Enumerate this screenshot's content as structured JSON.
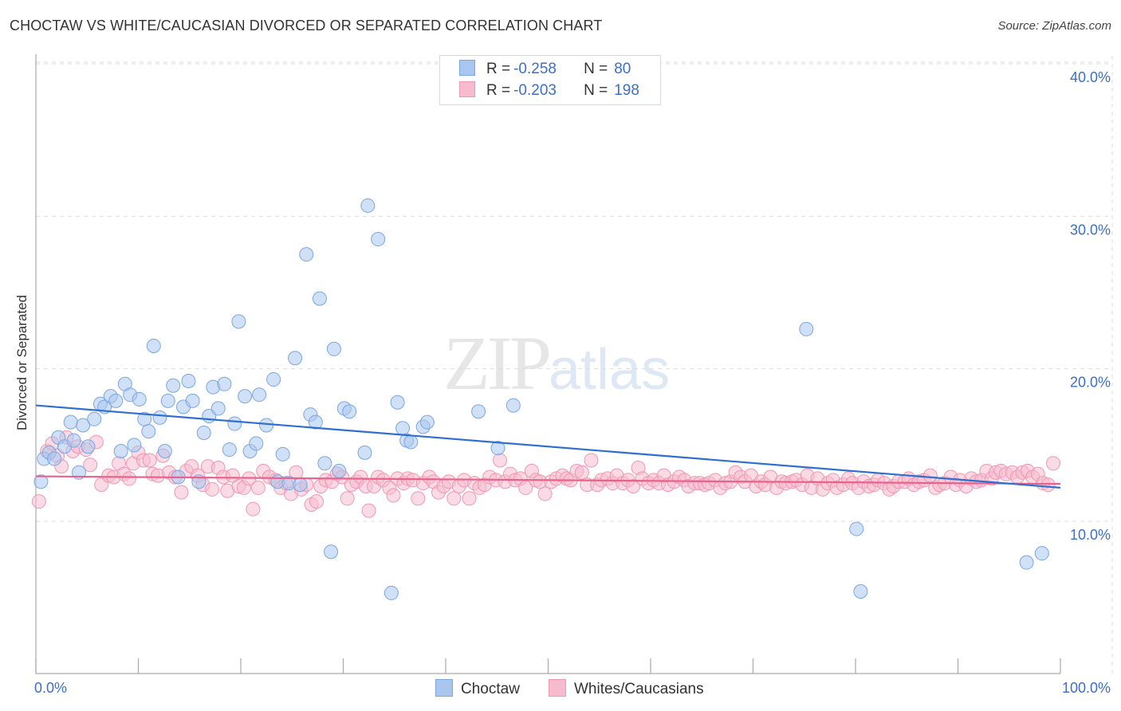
{
  "header": {
    "title": "CHOCTAW VS WHITE/CAUCASIAN DIVORCED OR SEPARATED CORRELATION CHART",
    "source": "Source: ZipAtlas.com"
  },
  "watermark": {
    "zip": "ZIP",
    "atlas": "atlas"
  },
  "legend_top": {
    "rows": [
      {
        "r_label": "R =",
        "r_value": "-0.258",
        "n_label": "N =",
        "n_value": "80"
      },
      {
        "r_label": "R =",
        "r_value": "-0.203",
        "n_label": "N =",
        "n_value": "198"
      }
    ]
  },
  "legend_bottom": {
    "items": [
      {
        "label": "Choctaw"
      },
      {
        "label": "Whites/Caucasians"
      }
    ]
  },
  "colors": {
    "choctaw_fill": "#a9c6ee",
    "choctaw_stroke": "#7aa7e0",
    "choctaw_line": "#2f6fd0",
    "white_fill": "#f6bccd",
    "white_stroke": "#ee98b2",
    "white_line": "#e8628d",
    "grid": "#dddddd",
    "tick_text": "#3d6fc6"
  },
  "chart_data": {
    "type": "scatter",
    "title": "CHOCTAW VS WHITE/CAUCASIAN DIVORCED OR SEPARATED CORRELATION CHART",
    "xlabel": "",
    "ylabel": "Divorced or Separated",
    "xlim": [
      0,
      100
    ],
    "ylim": [
      0,
      41
    ],
    "x_tick_labels": [
      "0.0%",
      "100.0%"
    ],
    "y_ticks": [
      10,
      20,
      30,
      40
    ],
    "y_tick_labels": [
      "10.0%",
      "20.0%",
      "30.0%",
      "40.0%"
    ],
    "grid": true,
    "legend_position": "top-center",
    "series": [
      {
        "name": "Choctaw",
        "r": -0.258,
        "n": 80,
        "trend": {
          "x": [
            0,
            100
          ],
          "y": [
            17.6,
            12.2
          ]
        },
        "points": [
          [
            0.5,
            12.6
          ],
          [
            0.8,
            14.1
          ],
          [
            1.3,
            14.5
          ],
          [
            1.8,
            14.1
          ],
          [
            2.2,
            15.5
          ],
          [
            2.8,
            14.9
          ],
          [
            3.4,
            16.5
          ],
          [
            3.7,
            15.3
          ],
          [
            4.2,
            13.2
          ],
          [
            4.6,
            16.3
          ],
          [
            5.1,
            14.9
          ],
          [
            5.7,
            16.7
          ],
          [
            6.3,
            17.7
          ],
          [
            6.7,
            17.5
          ],
          [
            7.3,
            18.2
          ],
          [
            7.8,
            17.9
          ],
          [
            8.3,
            14.6
          ],
          [
            8.7,
            19.0
          ],
          [
            9.2,
            18.3
          ],
          [
            9.6,
            15.0
          ],
          [
            10.1,
            18.0
          ],
          [
            10.6,
            16.7
          ],
          [
            11.0,
            15.9
          ],
          [
            11.5,
            21.5
          ],
          [
            12.1,
            16.8
          ],
          [
            12.6,
            14.6
          ],
          [
            12.9,
            17.9
          ],
          [
            13.4,
            18.9
          ],
          [
            13.9,
            12.9
          ],
          [
            14.4,
            17.5
          ],
          [
            14.9,
            19.2
          ],
          [
            15.3,
            17.9
          ],
          [
            15.9,
            12.6
          ],
          [
            16.4,
            15.8
          ],
          [
            16.9,
            16.9
          ],
          [
            17.3,
            18.8
          ],
          [
            17.8,
            17.4
          ],
          [
            18.4,
            19.0
          ],
          [
            18.9,
            14.7
          ],
          [
            19.4,
            16.4
          ],
          [
            19.8,
            23.1
          ],
          [
            20.4,
            18.2
          ],
          [
            20.9,
            14.6
          ],
          [
            21.5,
            15.1
          ],
          [
            21.8,
            18.3
          ],
          [
            22.5,
            16.3
          ],
          [
            23.2,
            19.3
          ],
          [
            23.6,
            12.6
          ],
          [
            24.1,
            14.4
          ],
          [
            24.7,
            12.5
          ],
          [
            25.3,
            20.7
          ],
          [
            25.8,
            12.4
          ],
          [
            26.4,
            27.5
          ],
          [
            26.8,
            17.0
          ],
          [
            27.3,
            16.5
          ],
          [
            27.7,
            24.6
          ],
          [
            28.2,
            13.8
          ],
          [
            28.8,
            8.0
          ],
          [
            29.1,
            21.3
          ],
          [
            29.6,
            13.3
          ],
          [
            30.1,
            17.4
          ],
          [
            30.6,
            17.2
          ],
          [
            32.1,
            14.5
          ],
          [
            32.4,
            30.7
          ],
          [
            33.4,
            28.5
          ],
          [
            34.7,
            5.3
          ],
          [
            35.3,
            17.8
          ],
          [
            35.8,
            16.1
          ],
          [
            36.2,
            15.3
          ],
          [
            36.6,
            15.2
          ],
          [
            37.8,
            16.2
          ],
          [
            38.2,
            16.5
          ],
          [
            43.2,
            17.2
          ],
          [
            45.1,
            14.8
          ],
          [
            46.6,
            17.6
          ],
          [
            75.2,
            22.6
          ],
          [
            80.1,
            9.5
          ],
          [
            80.5,
            5.4
          ],
          [
            96.7,
            7.3
          ],
          [
            98.2,
            7.9
          ]
        ]
      },
      {
        "name": "Whites/Caucasians",
        "r": -0.203,
        "n": 198,
        "trend": {
          "x": [
            0,
            100
          ],
          "y": [
            12.95,
            12.45
          ]
        },
        "points": [
          [
            0.3,
            11.3
          ],
          [
            1.1,
            14.6
          ],
          [
            1.6,
            15.1
          ],
          [
            2.1,
            14.3
          ],
          [
            2.5,
            13.6
          ],
          [
            3.0,
            15.5
          ],
          [
            3.6,
            14.6
          ],
          [
            4.1,
            14.9
          ],
          [
            4.9,
            14.7
          ],
          [
            5.3,
            13.7
          ],
          [
            5.9,
            15.2
          ],
          [
            6.4,
            12.4
          ],
          [
            7.1,
            13.0
          ],
          [
            7.6,
            12.9
          ],
          [
            8.1,
            13.8
          ],
          [
            8.6,
            13.1
          ],
          [
            9.1,
            12.8
          ],
          [
            9.5,
            13.8
          ],
          [
            10.0,
            14.5
          ],
          [
            10.5,
            14.0
          ],
          [
            11.1,
            14.0
          ],
          [
            11.4,
            13.1
          ],
          [
            11.9,
            13.0
          ],
          [
            12.4,
            14.3
          ],
          [
            13.0,
            13.2
          ],
          [
            13.6,
            12.9
          ],
          [
            14.2,
            11.9
          ],
          [
            14.7,
            13.3
          ],
          [
            15.2,
            13.6
          ],
          [
            15.8,
            13.0
          ],
          [
            16.3,
            12.4
          ],
          [
            16.8,
            13.6
          ],
          [
            17.2,
            12.1
          ],
          [
            17.8,
            13.5
          ],
          [
            18.3,
            12.9
          ],
          [
            18.7,
            12.0
          ],
          [
            19.2,
            13.0
          ],
          [
            19.8,
            12.3
          ],
          [
            20.3,
            12.2
          ],
          [
            20.8,
            12.8
          ],
          [
            21.2,
            10.8
          ],
          [
            21.7,
            12.2
          ],
          [
            22.2,
            13.3
          ],
          [
            22.8,
            12.9
          ],
          [
            23.4,
            12.7
          ],
          [
            23.9,
            12.2
          ],
          [
            24.4,
            12.5
          ],
          [
            24.9,
            11.8
          ],
          [
            25.4,
            13.2
          ],
          [
            25.9,
            12.1
          ],
          [
            26.4,
            12.4
          ],
          [
            26.9,
            11.1
          ],
          [
            27.4,
            11.3
          ],
          [
            27.8,
            12.3
          ],
          [
            28.3,
            12.7
          ],
          [
            28.9,
            12.6
          ],
          [
            29.4,
            13.1
          ],
          [
            29.9,
            12.9
          ],
          [
            30.4,
            11.5
          ],
          [
            30.8,
            12.4
          ],
          [
            31.3,
            12.6
          ],
          [
            31.7,
            12.9
          ],
          [
            32.2,
            12.3
          ],
          [
            32.5,
            10.7
          ],
          [
            33.0,
            12.3
          ],
          [
            33.4,
            12.9
          ],
          [
            33.9,
            12.7
          ],
          [
            34.5,
            12.2
          ],
          [
            34.9,
            11.7
          ],
          [
            35.3,
            12.8
          ],
          [
            35.9,
            12.5
          ],
          [
            36.3,
            12.8
          ],
          [
            36.8,
            12.7
          ],
          [
            37.3,
            11.5
          ],
          [
            37.8,
            12.5
          ],
          [
            38.4,
            12.9
          ],
          [
            38.8,
            12.6
          ],
          [
            39.3,
            11.9
          ],
          [
            39.8,
            12.3
          ],
          [
            40.3,
            12.6
          ],
          [
            40.8,
            11.5
          ],
          [
            41.3,
            12.3
          ],
          [
            41.8,
            12.7
          ],
          [
            42.3,
            11.5
          ],
          [
            42.8,
            12.5
          ],
          [
            43.3,
            12.2
          ],
          [
            43.8,
            12.4
          ],
          [
            44.3,
            12.9
          ],
          [
            44.9,
            12.7
          ],
          [
            45.3,
            14.0
          ],
          [
            45.8,
            12.6
          ],
          [
            46.3,
            13.1
          ],
          [
            46.8,
            12.7
          ],
          [
            47.3,
            12.8
          ],
          [
            47.8,
            12.2
          ],
          [
            48.4,
            13.3
          ],
          [
            48.8,
            12.7
          ],
          [
            49.2,
            12.6
          ],
          [
            49.7,
            11.8
          ],
          [
            50.3,
            12.6
          ],
          [
            50.8,
            12.8
          ],
          [
            51.4,
            13.0
          ],
          [
            51.8,
            12.8
          ],
          [
            52.2,
            12.7
          ],
          [
            52.8,
            13.3
          ],
          [
            53.3,
            13.2
          ],
          [
            53.8,
            12.4
          ],
          [
            54.2,
            14.0
          ],
          [
            54.8,
            12.4
          ],
          [
            55.2,
            12.7
          ],
          [
            55.8,
            12.8
          ],
          [
            56.3,
            12.5
          ],
          [
            56.7,
            13.0
          ],
          [
            57.3,
            12.5
          ],
          [
            57.8,
            12.7
          ],
          [
            58.3,
            12.3
          ],
          [
            58.8,
            13.5
          ],
          [
            59.2,
            12.8
          ],
          [
            59.8,
            12.5
          ],
          [
            60.3,
            12.7
          ],
          [
            60.8,
            12.5
          ],
          [
            61.3,
            13.0
          ],
          [
            61.7,
            12.4
          ],
          [
            62.3,
            12.6
          ],
          [
            62.8,
            12.9
          ],
          [
            63.3,
            12.7
          ],
          [
            63.7,
            12.3
          ],
          [
            64.3,
            12.5
          ],
          [
            64.8,
            12.5
          ],
          [
            65.3,
            12.4
          ],
          [
            65.7,
            12.5
          ],
          [
            66.3,
            12.7
          ],
          [
            66.8,
            12.2
          ],
          [
            67.3,
            12.5
          ],
          [
            67.8,
            12.6
          ],
          [
            68.3,
            13.2
          ],
          [
            68.8,
            12.9
          ],
          [
            69.2,
            12.6
          ],
          [
            69.8,
            13.0
          ],
          [
            70.3,
            12.3
          ],
          [
            70.8,
            12.6
          ],
          [
            71.2,
            12.4
          ],
          [
            71.7,
            12.9
          ],
          [
            72.3,
            12.2
          ],
          [
            72.8,
            12.6
          ],
          [
            73.2,
            12.5
          ],
          [
            73.8,
            12.6
          ],
          [
            74.2,
            12.7
          ],
          [
            74.8,
            12.4
          ],
          [
            75.3,
            13.0
          ],
          [
            75.7,
            12.2
          ],
          [
            76.3,
            12.8
          ],
          [
            76.8,
            12.1
          ],
          [
            77.3,
            12.5
          ],
          [
            77.8,
            12.7
          ],
          [
            78.2,
            12.2
          ],
          [
            78.8,
            12.4
          ],
          [
            79.3,
            12.8
          ],
          [
            79.7,
            12.5
          ],
          [
            80.3,
            12.2
          ],
          [
            80.8,
            12.6
          ],
          [
            81.3,
            12.3
          ],
          [
            81.8,
            12.4
          ],
          [
            82.2,
            12.7
          ],
          [
            82.8,
            12.5
          ],
          [
            83.3,
            12.1
          ],
          [
            83.7,
            12.3
          ],
          [
            84.2,
            12.6
          ],
          [
            84.8,
            12.6
          ],
          [
            85.2,
            12.8
          ],
          [
            85.7,
            12.4
          ],
          [
            86.2,
            12.6
          ],
          [
            86.7,
            12.7
          ],
          [
            87.3,
            13.0
          ],
          [
            87.8,
            12.2
          ],
          [
            88.2,
            12.4
          ],
          [
            88.7,
            12.5
          ],
          [
            89.3,
            12.9
          ],
          [
            89.8,
            12.4
          ],
          [
            90.2,
            12.7
          ],
          [
            90.8,
            12.3
          ],
          [
            91.3,
            12.8
          ],
          [
            91.8,
            12.6
          ],
          [
            92.3,
            12.7
          ],
          [
            92.8,
            13.3
          ],
          [
            93.3,
            12.8
          ],
          [
            93.7,
            13.2
          ],
          [
            94.2,
            13.3
          ],
          [
            94.7,
            13.1
          ],
          [
            95.3,
            13.2
          ],
          [
            95.8,
            12.9
          ],
          [
            96.3,
            13.2
          ],
          [
            96.8,
            13.3
          ],
          [
            97.3,
            12.9
          ],
          [
            97.8,
            13.1
          ],
          [
            98.3,
            12.5
          ],
          [
            98.8,
            12.4
          ],
          [
            99.3,
            13.8
          ]
        ]
      }
    ]
  }
}
